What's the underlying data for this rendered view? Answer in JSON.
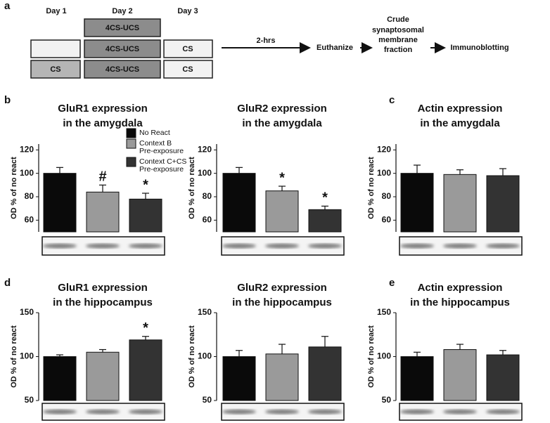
{
  "panel_letters": [
    "a",
    "b",
    "c",
    "d",
    "e"
  ],
  "panel_a": {
    "days": [
      "Day 1",
      "Day 2",
      "Day 3"
    ],
    "boxes": [
      "4CS-UCS",
      "4CS-UCS",
      "CS",
      "CS",
      "4CS-UCS",
      "CS"
    ],
    "arrow_label": "2-hrs",
    "euthanize": "Euthanize",
    "fraction": [
      "Crude",
      "synaptosomal",
      "membrane",
      "fraction"
    ],
    "immunoblotting": "Immunoblotting"
  },
  "legend": {
    "entries": [
      [
        "No React"
      ],
      [
        "Context B",
        "Pre-exposure"
      ],
      [
        "Context C+CS",
        "Pre-exposure"
      ]
    ]
  },
  "chart_data": [
    {
      "type": "bar",
      "title": [
        "GluR1 expression",
        "in the amygdala"
      ],
      "ylabel": "OD % of no react",
      "values": [
        100,
        84,
        78
      ],
      "errors": [
        5,
        6,
        5
      ],
      "annotations": [
        null,
        "#",
        "*"
      ],
      "colors": [
        "#0a0a0a",
        "#9a9a9a",
        "#333333"
      ],
      "ylim": [
        50,
        125
      ],
      "yticks": [
        60,
        80,
        100,
        120
      ]
    },
    {
      "type": "bar",
      "title": [
        "GluR2 expression",
        "in the amygdala"
      ],
      "ylabel": "OD % of no react",
      "values": [
        100,
        85,
        69
      ],
      "errors": [
        5,
        4,
        3
      ],
      "annotations": [
        null,
        "*",
        "*"
      ],
      "colors": [
        "#0a0a0a",
        "#9a9a9a",
        "#333333"
      ],
      "ylim": [
        50,
        125
      ],
      "yticks": [
        60,
        80,
        100,
        120
      ]
    },
    {
      "type": "bar",
      "title": [
        "Actin expression",
        "in the amygdala"
      ],
      "ylabel": "OD % of no react",
      "values": [
        100,
        99,
        98
      ],
      "errors": [
        7,
        4,
        6
      ],
      "annotations": [
        null,
        null,
        null
      ],
      "colors": [
        "#0a0a0a",
        "#9a9a9a",
        "#333333"
      ],
      "ylim": [
        50,
        125
      ],
      "yticks": [
        60,
        80,
        100,
        120
      ]
    },
    {
      "type": "bar",
      "title": [
        "GluR1 expression",
        "in the hippocampus"
      ],
      "ylabel": "OD % of no react",
      "values": [
        100,
        105,
        119
      ],
      "errors": [
        2,
        3,
        4
      ],
      "annotations": [
        null,
        null,
        "*"
      ],
      "colors": [
        "#0a0a0a",
        "#9a9a9a",
        "#333333"
      ],
      "ylim": [
        50,
        150
      ],
      "yticks": [
        50,
        100,
        150
      ]
    },
    {
      "type": "bar",
      "title": [
        "GluR2 expression",
        "in the hippocampus"
      ],
      "ylabel": "OD % of no react",
      "values": [
        100,
        103,
        111
      ],
      "errors": [
        7,
        11,
        12
      ],
      "annotations": [
        null,
        null,
        null
      ],
      "colors": [
        "#0a0a0a",
        "#9a9a9a",
        "#333333"
      ],
      "ylim": [
        50,
        150
      ],
      "yticks": [
        50,
        100,
        150
      ]
    },
    {
      "type": "bar",
      "title": [
        "Actin expression",
        "in the hippocampus"
      ],
      "ylabel": "OD % of no react",
      "values": [
        100,
        108,
        102
      ],
      "errors": [
        5,
        6,
        5
      ],
      "annotations": [
        null,
        null,
        null
      ],
      "colors": [
        "#0a0a0a",
        "#9a9a9a",
        "#333333"
      ],
      "ylim": [
        50,
        150
      ],
      "yticks": [
        50,
        100,
        150
      ]
    }
  ]
}
